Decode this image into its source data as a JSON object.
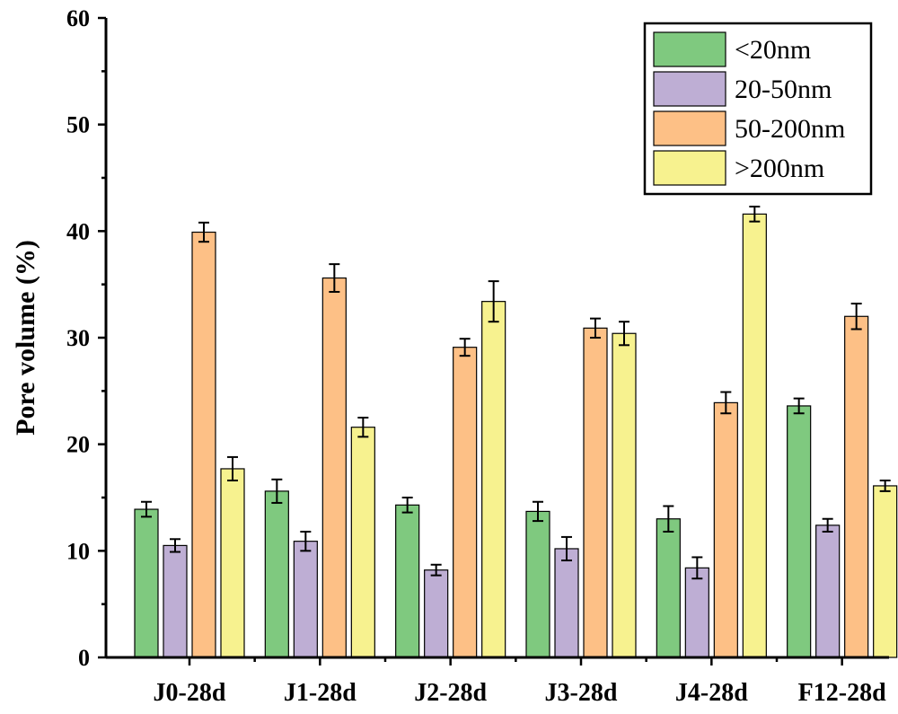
{
  "chart_data": {
    "type": "bar",
    "title": "",
    "xlabel": "",
    "ylabel": "Pore volume (%)",
    "ylim": [
      0,
      60
    ],
    "yticks": [
      0,
      10,
      20,
      30,
      40,
      50,
      60
    ],
    "grid": false,
    "legend_position": "top-right",
    "categories": [
      "J0-28d",
      "J1-28d",
      "J2-28d",
      "J3-28d",
      "J4-28d",
      "F12-28d"
    ],
    "series": [
      {
        "name": "<20nm",
        "color": "#7fc97f",
        "values": [
          13.9,
          15.6,
          14.3,
          13.7,
          13.0,
          23.6
        ],
        "errors": [
          0.7,
          1.1,
          0.7,
          0.9,
          1.2,
          0.7
        ]
      },
      {
        "name": "20-50nm",
        "color": "#beaed4",
        "values": [
          10.5,
          10.9,
          8.2,
          10.2,
          8.4,
          12.4
        ],
        "errors": [
          0.6,
          0.9,
          0.5,
          1.1,
          1.0,
          0.6
        ]
      },
      {
        "name": "50-200nm",
        "color": "#fdc086",
        "values": [
          39.9,
          35.6,
          29.1,
          30.9,
          23.9,
          32.0
        ],
        "errors": [
          0.9,
          1.3,
          0.8,
          0.9,
          1.0,
          1.2
        ]
      },
      {
        "name": ">200nm",
        "color": "#f7f28f",
        "values": [
          17.7,
          21.6,
          33.4,
          30.4,
          41.6,
          16.1
        ],
        "errors": [
          1.1,
          0.9,
          1.9,
          1.1,
          0.7,
          0.5
        ]
      }
    ]
  }
}
